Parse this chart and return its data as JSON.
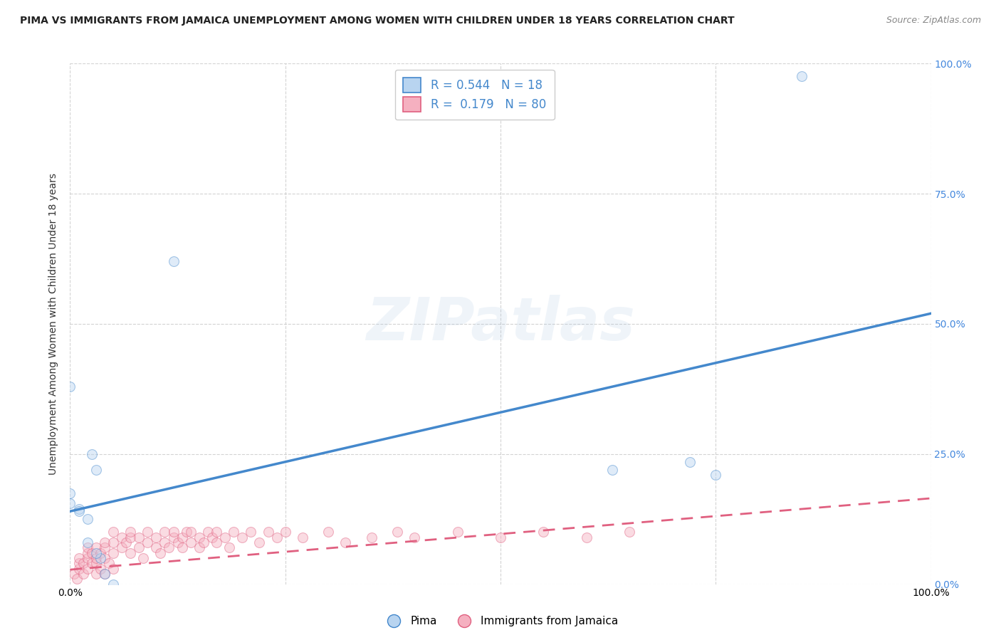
{
  "title": "PIMA VS IMMIGRANTS FROM JAMAICA UNEMPLOYMENT AMONG WOMEN WITH CHILDREN UNDER 18 YEARS CORRELATION CHART",
  "source": "Source: ZipAtlas.com",
  "ylabel": "Unemployment Among Women with Children Under 18 years",
  "watermark": "ZIPatlas",
  "pima_R": 0.544,
  "pima_N": 18,
  "jamaica_R": 0.179,
  "jamaica_N": 80,
  "pima_color": "#b8d4f0",
  "pima_line_color": "#4488cc",
  "jamaica_color": "#f5b0c0",
  "jamaica_line_color": "#e06080",
  "xlim": [
    0,
    1
  ],
  "ylim": [
    0,
    1
  ],
  "xtick_labels_left": [
    "0.0%"
  ],
  "xtick_labels_right": [
    "100.0%"
  ],
  "ytick_vals": [
    0,
    0.25,
    0.5,
    0.75,
    1.0
  ],
  "ytick_labels_right": [
    "0.0%",
    "25.0%",
    "50.0%",
    "75.0%",
    "100.0%"
  ],
  "pima_line_x0": 0.0,
  "pima_line_y0": 0.14,
  "pima_line_x1": 1.0,
  "pima_line_y1": 0.52,
  "jamaica_line_x0": 0.0,
  "jamaica_line_y0": 0.028,
  "jamaica_line_x1": 1.0,
  "jamaica_line_y1": 0.165,
  "pima_points": [
    [
      0.0,
      0.155
    ],
    [
      0.0,
      0.175
    ],
    [
      0.0,
      0.38
    ],
    [
      0.01,
      0.145
    ],
    [
      0.02,
      0.125
    ],
    [
      0.02,
      0.08
    ],
    [
      0.025,
      0.25
    ],
    [
      0.03,
      0.22
    ],
    [
      0.035,
      0.05
    ],
    [
      0.04,
      0.02
    ],
    [
      0.05,
      0.0
    ],
    [
      0.12,
      0.62
    ],
    [
      0.63,
      0.22
    ],
    [
      0.72,
      0.235
    ],
    [
      0.75,
      0.21
    ],
    [
      0.85,
      0.975
    ],
    [
      0.01,
      0.14
    ],
    [
      0.03,
      0.06
    ]
  ],
  "jamaica_points": [
    [
      0.005,
      0.02
    ],
    [
      0.008,
      0.01
    ],
    [
      0.01,
      0.03
    ],
    [
      0.01,
      0.04
    ],
    [
      0.01,
      0.05
    ],
    [
      0.015,
      0.02
    ],
    [
      0.015,
      0.04
    ],
    [
      0.02,
      0.03
    ],
    [
      0.02,
      0.05
    ],
    [
      0.02,
      0.06
    ],
    [
      0.02,
      0.07
    ],
    [
      0.025,
      0.04
    ],
    [
      0.025,
      0.06
    ],
    [
      0.03,
      0.02
    ],
    [
      0.03,
      0.04
    ],
    [
      0.03,
      0.05
    ],
    [
      0.03,
      0.07
    ],
    [
      0.035,
      0.03
    ],
    [
      0.035,
      0.06
    ],
    [
      0.04,
      0.02
    ],
    [
      0.04,
      0.05
    ],
    [
      0.04,
      0.07
    ],
    [
      0.04,
      0.08
    ],
    [
      0.045,
      0.04
    ],
    [
      0.05,
      0.03
    ],
    [
      0.05,
      0.06
    ],
    [
      0.05,
      0.08
    ],
    [
      0.05,
      0.1
    ],
    [
      0.06,
      0.07
    ],
    [
      0.06,
      0.09
    ],
    [
      0.065,
      0.08
    ],
    [
      0.07,
      0.06
    ],
    [
      0.07,
      0.09
    ],
    [
      0.07,
      0.1
    ],
    [
      0.08,
      0.07
    ],
    [
      0.08,
      0.09
    ],
    [
      0.085,
      0.05
    ],
    [
      0.09,
      0.08
    ],
    [
      0.09,
      0.1
    ],
    [
      0.1,
      0.07
    ],
    [
      0.1,
      0.09
    ],
    [
      0.105,
      0.06
    ],
    [
      0.11,
      0.08
    ],
    [
      0.11,
      0.1
    ],
    [
      0.115,
      0.07
    ],
    [
      0.12,
      0.09
    ],
    [
      0.12,
      0.1
    ],
    [
      0.125,
      0.08
    ],
    [
      0.13,
      0.07
    ],
    [
      0.13,
      0.09
    ],
    [
      0.135,
      0.1
    ],
    [
      0.14,
      0.08
    ],
    [
      0.14,
      0.1
    ],
    [
      0.15,
      0.07
    ],
    [
      0.15,
      0.09
    ],
    [
      0.155,
      0.08
    ],
    [
      0.16,
      0.1
    ],
    [
      0.165,
      0.09
    ],
    [
      0.17,
      0.08
    ],
    [
      0.17,
      0.1
    ],
    [
      0.18,
      0.09
    ],
    [
      0.185,
      0.07
    ],
    [
      0.19,
      0.1
    ],
    [
      0.2,
      0.09
    ],
    [
      0.21,
      0.1
    ],
    [
      0.22,
      0.08
    ],
    [
      0.23,
      0.1
    ],
    [
      0.24,
      0.09
    ],
    [
      0.25,
      0.1
    ],
    [
      0.27,
      0.09
    ],
    [
      0.3,
      0.1
    ],
    [
      0.32,
      0.08
    ],
    [
      0.35,
      0.09
    ],
    [
      0.38,
      0.1
    ],
    [
      0.4,
      0.09
    ],
    [
      0.45,
      0.1
    ],
    [
      0.5,
      0.09
    ],
    [
      0.55,
      0.1
    ],
    [
      0.6,
      0.09
    ],
    [
      0.65,
      0.1
    ]
  ],
  "title_fontsize": 10,
  "axis_label_fontsize": 10,
  "tick_fontsize": 10,
  "legend_fontsize": 12,
  "watermark_fontsize": 60,
  "watermark_alpha": 0.15,
  "scatter_size": 100,
  "scatter_alpha": 0.45,
  "grid_color": "#c8c8c8",
  "background_color": "#ffffff",
  "right_ytick_color": "#4488dd"
}
